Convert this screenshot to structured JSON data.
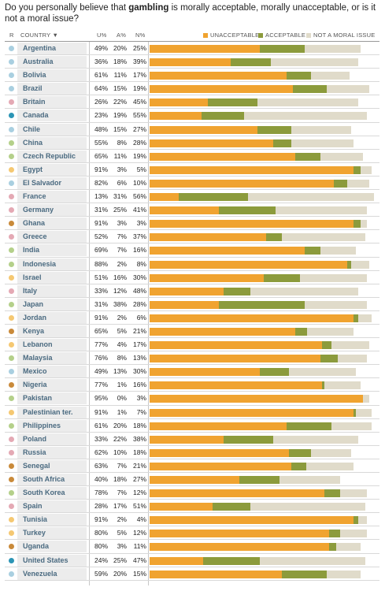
{
  "question": {
    "before": "Do you personally believe that ",
    "bold": "gambling",
    "after": " is morally acceptable, morally unacceptable, or is it not a moral issue?"
  },
  "header": {
    "region": "R",
    "country": "COUNTRY ▼",
    "unacceptable": "U%",
    "acceptable": "A%",
    "not_moral": "N%"
  },
  "legend": {
    "unacceptable": "UNACCEPTABLE",
    "acceptable": "ACCEPTABLE",
    "not_moral": "NOT A MORAL ISSUE"
  },
  "colors": {
    "unacceptable": "#f0a330",
    "acceptable": "#8c9b3c",
    "not_moral": "#e0dbca"
  },
  "chart_data": {
    "type": "bar",
    "stacked": true,
    "orientation": "horizontal",
    "categories": [
      "Argentina",
      "Australia",
      "Bolivia",
      "Brazil",
      "Britain",
      "Canada",
      "Chile",
      "China",
      "Czech Republic",
      "Egypt",
      "El Salvador",
      "France",
      "Germany",
      "Ghana",
      "Greece",
      "India",
      "Indonesia",
      "Israel",
      "Italy",
      "Japan",
      "Jordan",
      "Kenya",
      "Lebanon",
      "Malaysia",
      "Mexico",
      "Nigeria",
      "Pakistan",
      "Palestinian ter.",
      "Philippines",
      "Poland",
      "Russia",
      "Senegal",
      "South Africa",
      "South Korea",
      "Spain",
      "Tunisia",
      "Turkey",
      "Uganda",
      "United States",
      "Venezuela"
    ],
    "region_colors": [
      "#a9cfe0",
      "#a9cfe0",
      "#a9cfe0",
      "#a9cfe0",
      "#e4a9b4",
      "#2c95b5",
      "#a9cfe0",
      "#b4d08a",
      "#b4d08a",
      "#f5c872",
      "#a9cfe0",
      "#e4a9b4",
      "#e4a9b4",
      "#c98a3a",
      "#e4a9b4",
      "#b4d08a",
      "#b4d08a",
      "#f5c872",
      "#e4a9b4",
      "#b4d08a",
      "#f5c872",
      "#c98a3a",
      "#f5c872",
      "#b4d08a",
      "#a9cfe0",
      "#c98a3a",
      "#b4d08a",
      "#f5c872",
      "#b4d08a",
      "#e4a9b4",
      "#e4a9b4",
      "#c98a3a",
      "#c98a3a",
      "#b4d08a",
      "#e4a9b4",
      "#f5c872",
      "#f5c872",
      "#c98a3a",
      "#2c95b5",
      "#a9cfe0"
    ],
    "series": [
      {
        "name": "UNACCEPTABLE",
        "values": [
          49,
          36,
          61,
          64,
          26,
          23,
          48,
          55,
          65,
          91,
          82,
          13,
          31,
          91,
          52,
          69,
          88,
          51,
          33,
          31,
          91,
          65,
          77,
          76,
          49,
          77,
          95,
          91,
          61,
          33,
          62,
          63,
          40,
          78,
          28,
          91,
          80,
          80,
          24,
          59
        ]
      },
      {
        "name": "ACCEPTABLE",
        "values": [
          20,
          18,
          11,
          15,
          22,
          19,
          15,
          8,
          11,
          3,
          6,
          31,
          25,
          3,
          7,
          7,
          2,
          16,
          12,
          38,
          2,
          5,
          4,
          8,
          13,
          1,
          0,
          1,
          20,
          22,
          10,
          7,
          18,
          7,
          17,
          2,
          5,
          3,
          25,
          20
        ]
      },
      {
        "name": "NOT A MORAL ISSUE",
        "values": [
          25,
          39,
          17,
          19,
          45,
          55,
          27,
          28,
          19,
          5,
          10,
          56,
          41,
          3,
          37,
          16,
          8,
          30,
          48,
          28,
          6,
          21,
          17,
          13,
          30,
          16,
          3,
          7,
          18,
          38,
          18,
          21,
          27,
          12,
          51,
          4,
          12,
          11,
          47,
          15
        ]
      }
    ],
    "value_labels": {
      "unacceptable": [
        "49%",
        "36%",
        "61%",
        "64%",
        "26%",
        "23%",
        "48%",
        "55%",
        "65%",
        "91%",
        "82%",
        "13%",
        "31%",
        "91%",
        "52%",
        "69%",
        "88%",
        "51%",
        "33%",
        "31%",
        "91%",
        "65%",
        "77%",
        "76%",
        "49%",
        "77%",
        "95%",
        "91%",
        "61%",
        "33%",
        "62%",
        "63%",
        "40%",
        "78%",
        "28%",
        "91%",
        "80%",
        "80%",
        "24%",
        "59%"
      ],
      "acceptable": [
        "20%",
        "18%",
        "11%",
        "15%",
        "22%",
        "19%",
        "15%",
        "8%",
        "11%",
        "3%",
        "6%",
        "31%",
        "25%",
        "3%",
        "7%",
        "7%",
        "2%",
        "16%",
        "12%",
        "38%",
        "2%",
        "5%",
        "4%",
        "8%",
        "13%",
        "1%",
        "0%",
        "1%",
        "20%",
        "22%",
        "10%",
        "7%",
        "18%",
        "7%",
        "17%",
        "2%",
        "5%",
        "3%",
        "25%",
        "20%"
      ],
      "not_moral": [
        "25%",
        "39%",
        "17%",
        "19%",
        "45%",
        "55%",
        "27%",
        "28%",
        "19%",
        "5%",
        "10%",
        "56%",
        "41%",
        "3%",
        "37%",
        "16%",
        "8%",
        "30%",
        "48%",
        "28%",
        "6%",
        "21%",
        "17%",
        "13%",
        "30%",
        "16%",
        "3%",
        "7%",
        "18%",
        "38%",
        "18%",
        "21%",
        "27%",
        "12%",
        "51%",
        "4%",
        "12%",
        "11%",
        "47%",
        "15%"
      ]
    },
    "xlim": [
      0,
      100
    ],
    "legend_position": "top"
  }
}
